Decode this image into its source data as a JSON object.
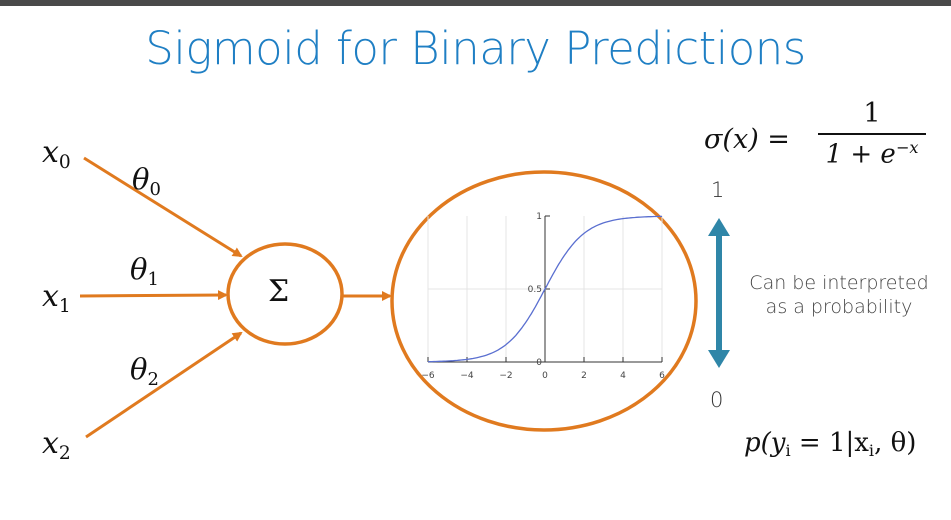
{
  "title": "Sigmoid for Binary Predictions",
  "inputs": [
    {
      "var": "x",
      "sub": "0",
      "weight_var": "θ",
      "weight_sub": "0"
    },
    {
      "var": "x",
      "sub": "1",
      "weight_var": "θ",
      "weight_sub": "1"
    },
    {
      "var": "x",
      "sub": "2",
      "weight_var": "θ",
      "weight_sub": "2"
    }
  ],
  "summation_symbol": "Σ",
  "sigmoid_formula": {
    "lhs": "σ(x) =",
    "numerator": "1",
    "denominator_base": "1 + e",
    "denominator_exponent": "−x"
  },
  "range": {
    "top": "1",
    "bottom": "0"
  },
  "interpretation": [
    "Can be interpreted",
    "as a probability"
  ],
  "probability_expression": "p(y",
  "probability_sub": "i",
  "probability_rest": " = 1|x",
  "probability_sub2": "i",
  "probability_end": ", θ)",
  "colors": {
    "orange": "#e07a1f",
    "title_blue": "#1f7fc4",
    "teal_arrow": "#2f86a8",
    "curve": "#5a6fd0"
  },
  "chart_data": {
    "type": "line",
    "x_ticks": [
      "−6",
      "−4",
      "−2",
      "0",
      "2",
      "4",
      "6"
    ],
    "y_ticks": [
      "0",
      "0.5",
      "1"
    ],
    "xlim": [
      -6,
      6
    ],
    "ylim": [
      0,
      1
    ],
    "function": "sigmoid",
    "series": [
      {
        "x": [
          -6,
          -5,
          -4,
          -3,
          -2,
          -1,
          0,
          1,
          2,
          3,
          4,
          5,
          6
        ],
        "y": [
          0.0025,
          0.0067,
          0.018,
          0.047,
          0.119,
          0.269,
          0.5,
          0.731,
          0.881,
          0.953,
          0.982,
          0.993,
          0.9975
        ]
      }
    ],
    "grid": true
  }
}
